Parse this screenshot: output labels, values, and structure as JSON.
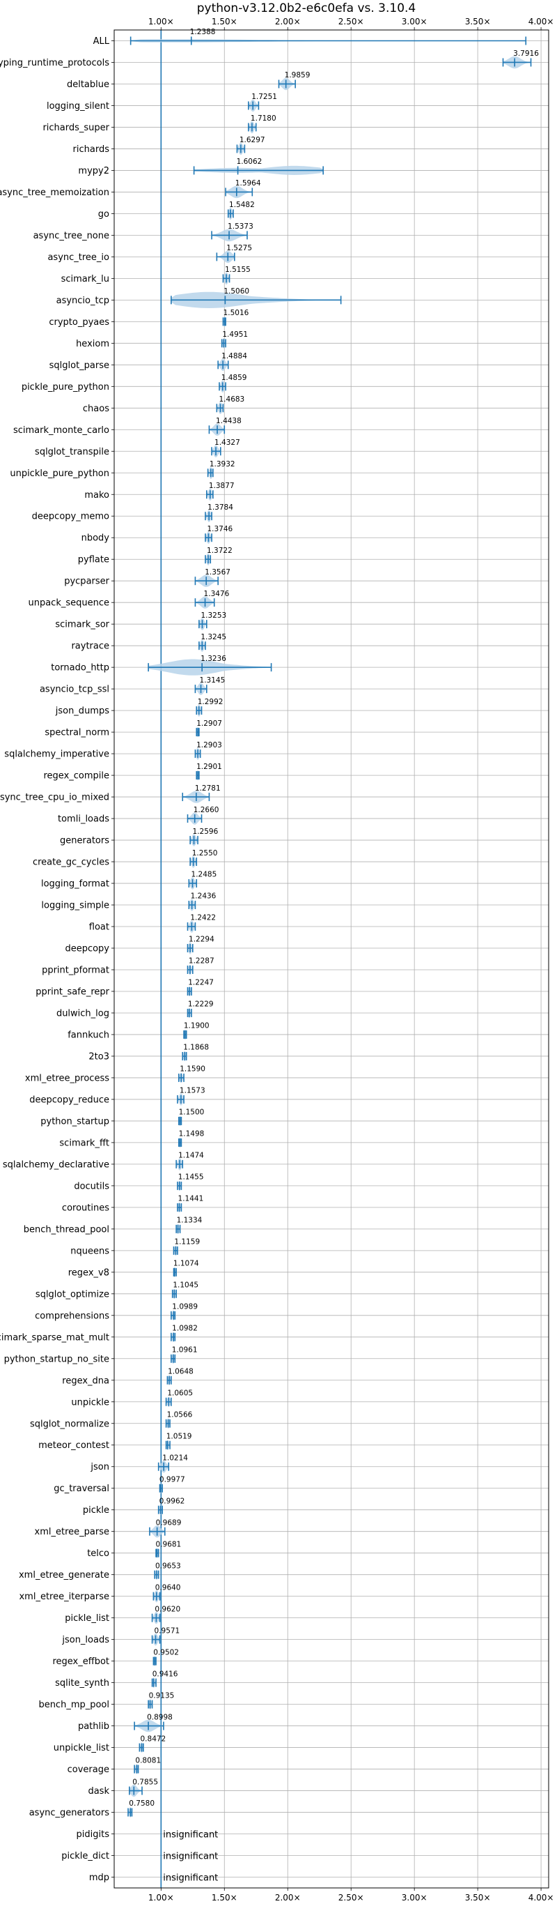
{
  "chart_data": {
    "type": "violin",
    "title": "python-v3.12.0b2-e6c0efa vs. 3.10.4",
    "orientation": "horizontal",
    "xlim": [
      0.63,
      4.06
    ],
    "x_ticks": [
      1.0,
      1.5,
      2.0,
      2.5,
      3.0,
      3.5,
      4.0
    ],
    "x_tick_labels": [
      "1.00×",
      "1.50×",
      "2.00×",
      "2.50×",
      "3.00×",
      "3.50×",
      "4.00×"
    ],
    "x_tick_position": "top-and-bottom",
    "reference_line": 1.0,
    "grid": true,
    "colors": {
      "line": "#1f77b4",
      "violin_fill": "#b7d3ea",
      "grid": "#b0b0b0",
      "axis": "#000000"
    },
    "benchmarks": [
      {
        "name": "ALL",
        "label": "1.2388",
        "median": 1.2388,
        "min": 0.76,
        "max": 3.88,
        "width": 0.16,
        "mode": 1.12
      },
      {
        "name": "typing_runtime_protocols",
        "label": "3.7916",
        "median": 3.7916,
        "min": 3.7,
        "max": 3.92,
        "width": 0.6
      },
      {
        "name": "deltablue",
        "label": "1.9859",
        "median": 1.9859,
        "min": 1.93,
        "max": 2.06,
        "width": 0.6
      },
      {
        "name": "logging_silent",
        "label": "1.7251",
        "median": 1.7251,
        "min": 1.69,
        "max": 1.77,
        "width": 0.6
      },
      {
        "name": "richards_super",
        "label": "1.7180",
        "median": 1.718,
        "min": 1.69,
        "max": 1.75,
        "width": 0.6
      },
      {
        "name": "richards",
        "label": "1.6297",
        "median": 1.6297,
        "min": 1.6,
        "max": 1.66,
        "width": 0.6
      },
      {
        "name": "mypy2",
        "label": "1.6062",
        "median": 1.6062,
        "min": 1.26,
        "max": 2.28,
        "width": 0.45,
        "mode": 2.05
      },
      {
        "name": "async_tree_memoization",
        "label": "1.5964",
        "median": 1.5964,
        "min": 1.51,
        "max": 1.72,
        "width": 0.6
      },
      {
        "name": "go",
        "label": "1.5482",
        "median": 1.5482,
        "min": 1.53,
        "max": 1.57,
        "width": 0.6
      },
      {
        "name": "async_tree_none",
        "label": "1.5373",
        "median": 1.5373,
        "min": 1.4,
        "max": 1.68,
        "width": 0.6
      },
      {
        "name": "async_tree_io",
        "label": "1.5275",
        "median": 1.5275,
        "min": 1.44,
        "max": 1.58,
        "width": 0.6
      },
      {
        "name": "scimark_lu",
        "label": "1.5155",
        "median": 1.5155,
        "min": 1.49,
        "max": 1.54,
        "width": 0.6
      },
      {
        "name": "asyncio_tcp",
        "label": "1.5060",
        "median": 1.506,
        "min": 1.08,
        "max": 2.42,
        "width": 0.8,
        "mode": 1.38
      },
      {
        "name": "crypto_pyaes",
        "label": "1.5016",
        "median": 1.5016,
        "min": 1.49,
        "max": 1.51,
        "width": 0.5
      },
      {
        "name": "hexiom",
        "label": "1.4951",
        "median": 1.4951,
        "min": 1.48,
        "max": 1.51,
        "width": 0.5
      },
      {
        "name": "sqlglot_parse",
        "label": "1.4884",
        "median": 1.4884,
        "min": 1.45,
        "max": 1.53,
        "width": 0.6
      },
      {
        "name": "pickle_pure_python",
        "label": "1.4859",
        "median": 1.4859,
        "min": 1.46,
        "max": 1.51,
        "width": 0.6
      },
      {
        "name": "chaos",
        "label": "1.4683",
        "median": 1.4683,
        "min": 1.44,
        "max": 1.49,
        "width": 0.6
      },
      {
        "name": "scimark_monte_carlo",
        "label": "1.4438",
        "median": 1.4438,
        "min": 1.38,
        "max": 1.5,
        "width": 0.6
      },
      {
        "name": "sqlglot_transpile",
        "label": "1.4327",
        "median": 1.4327,
        "min": 1.4,
        "max": 1.47,
        "width": 0.6
      },
      {
        "name": "unpickle_pure_python",
        "label": "1.3932",
        "median": 1.3932,
        "min": 1.37,
        "max": 1.41,
        "width": 0.6
      },
      {
        "name": "mako",
        "label": "1.3877",
        "median": 1.3877,
        "min": 1.36,
        "max": 1.41,
        "width": 0.6
      },
      {
        "name": "deepcopy_memo",
        "label": "1.3784",
        "median": 1.3784,
        "min": 1.35,
        "max": 1.4,
        "width": 0.6
      },
      {
        "name": "nbody",
        "label": "1.3746",
        "median": 1.3746,
        "min": 1.35,
        "max": 1.4,
        "width": 0.6
      },
      {
        "name": "pyflate",
        "label": "1.3722",
        "median": 1.3722,
        "min": 1.35,
        "max": 1.39,
        "width": 0.6
      },
      {
        "name": "pycparser",
        "label": "1.3567",
        "median": 1.3567,
        "min": 1.27,
        "max": 1.45,
        "width": 0.6
      },
      {
        "name": "unpack_sequence",
        "label": "1.3476",
        "median": 1.3476,
        "min": 1.27,
        "max": 1.42,
        "width": 0.6
      },
      {
        "name": "scimark_sor",
        "label": "1.3253",
        "median": 1.3253,
        "min": 1.3,
        "max": 1.36,
        "width": 0.6
      },
      {
        "name": "raytrace",
        "label": "1.3245",
        "median": 1.3245,
        "min": 1.3,
        "max": 1.35,
        "width": 0.6
      },
      {
        "name": "tornado_http",
        "label": "1.3236",
        "median": 1.3236,
        "min": 0.9,
        "max": 1.87,
        "width": 0.8,
        "mode": 1.25
      },
      {
        "name": "asyncio_tcp_ssl",
        "label": "1.3145",
        "median": 1.3145,
        "min": 1.27,
        "max": 1.36,
        "width": 0.6
      },
      {
        "name": "json_dumps",
        "label": "1.2992",
        "median": 1.2992,
        "min": 1.28,
        "max": 1.32,
        "width": 0.6
      },
      {
        "name": "spectral_norm",
        "label": "1.2907",
        "median": 1.2907,
        "min": 1.28,
        "max": 1.3,
        "width": 0.5
      },
      {
        "name": "sqlalchemy_imperative",
        "label": "1.2903",
        "median": 1.2903,
        "min": 1.27,
        "max": 1.31,
        "width": 0.6
      },
      {
        "name": "regex_compile",
        "label": "1.2901",
        "median": 1.2901,
        "min": 1.28,
        "max": 1.3,
        "width": 0.5
      },
      {
        "name": "async_tree_cpu_io_mixed",
        "label": "1.2781",
        "median": 1.2781,
        "min": 1.17,
        "max": 1.38,
        "width": 0.6
      },
      {
        "name": "tomli_loads",
        "label": "1.2660",
        "median": 1.266,
        "min": 1.21,
        "max": 1.32,
        "width": 0.6
      },
      {
        "name": "generators",
        "label": "1.2596",
        "median": 1.2596,
        "min": 1.23,
        "max": 1.29,
        "width": 0.6
      },
      {
        "name": "create_gc_cycles",
        "label": "1.2550",
        "median": 1.255,
        "min": 1.23,
        "max": 1.28,
        "width": 0.6
      },
      {
        "name": "logging_format",
        "label": "1.2485",
        "median": 1.2485,
        "min": 1.22,
        "max": 1.28,
        "width": 0.6
      },
      {
        "name": "logging_simple",
        "label": "1.2436",
        "median": 1.2436,
        "min": 1.22,
        "max": 1.27,
        "width": 0.6
      },
      {
        "name": "float",
        "label": "1.2422",
        "median": 1.2422,
        "min": 1.21,
        "max": 1.27,
        "width": 0.6
      },
      {
        "name": "deepcopy",
        "label": "1.2294",
        "median": 1.2294,
        "min": 1.21,
        "max": 1.25,
        "width": 0.6
      },
      {
        "name": "pprint_pformat",
        "label": "1.2287",
        "median": 1.2287,
        "min": 1.21,
        "max": 1.25,
        "width": 0.5
      },
      {
        "name": "pprint_safe_repr",
        "label": "1.2247",
        "median": 1.2247,
        "min": 1.21,
        "max": 1.24,
        "width": 0.5
      },
      {
        "name": "dulwich_log",
        "label": "1.2229",
        "median": 1.2229,
        "min": 1.21,
        "max": 1.24,
        "width": 0.5
      },
      {
        "name": "fannkuch",
        "label": "1.1900",
        "median": 1.19,
        "min": 1.18,
        "max": 1.2,
        "width": 0.5
      },
      {
        "name": "2to3",
        "label": "1.1868",
        "median": 1.1868,
        "min": 1.17,
        "max": 1.2,
        "width": 0.5
      },
      {
        "name": "xml_etree_process",
        "label": "1.1590",
        "median": 1.159,
        "min": 1.14,
        "max": 1.18,
        "width": 0.5
      },
      {
        "name": "deepcopy_reduce",
        "label": "1.1573",
        "median": 1.1573,
        "min": 1.13,
        "max": 1.18,
        "width": 0.6
      },
      {
        "name": "python_startup",
        "label": "1.1500",
        "median": 1.15,
        "min": 1.14,
        "max": 1.16,
        "width": 0.5
      },
      {
        "name": "scimark_fft",
        "label": "1.1498",
        "median": 1.1498,
        "min": 1.14,
        "max": 1.16,
        "width": 0.5
      },
      {
        "name": "sqlalchemy_declarative",
        "label": "1.1474",
        "median": 1.1474,
        "min": 1.12,
        "max": 1.17,
        "width": 0.6
      },
      {
        "name": "docutils",
        "label": "1.1455",
        "median": 1.1455,
        "min": 1.13,
        "max": 1.16,
        "width": 0.5
      },
      {
        "name": "coroutines",
        "label": "1.1441",
        "median": 1.1441,
        "min": 1.13,
        "max": 1.16,
        "width": 0.5
      },
      {
        "name": "bench_thread_pool",
        "label": "1.1334",
        "median": 1.1334,
        "min": 1.12,
        "max": 1.15,
        "width": 0.5
      },
      {
        "name": "nqueens",
        "label": "1.1159",
        "median": 1.1159,
        "min": 1.1,
        "max": 1.13,
        "width": 0.5
      },
      {
        "name": "regex_v8",
        "label": "1.1074",
        "median": 1.1074,
        "min": 1.1,
        "max": 1.12,
        "width": 0.5
      },
      {
        "name": "sqlglot_optimize",
        "label": "1.1045",
        "median": 1.1045,
        "min": 1.09,
        "max": 1.12,
        "width": 0.5
      },
      {
        "name": "comprehensions",
        "label": "1.0989",
        "median": 1.0989,
        "min": 1.08,
        "max": 1.11,
        "width": 0.5
      },
      {
        "name": "scimark_sparse_mat_mult",
        "label": "1.0982",
        "median": 1.0982,
        "min": 1.08,
        "max": 1.11,
        "width": 0.5
      },
      {
        "name": "python_startup_no_site",
        "label": "1.0961",
        "median": 1.0961,
        "min": 1.08,
        "max": 1.11,
        "width": 0.5
      },
      {
        "name": "regex_dna",
        "label": "1.0648",
        "median": 1.0648,
        "min": 1.05,
        "max": 1.08,
        "width": 0.5
      },
      {
        "name": "unpickle",
        "label": "1.0605",
        "median": 1.0605,
        "min": 1.04,
        "max": 1.08,
        "width": 0.5
      },
      {
        "name": "sqlglot_normalize",
        "label": "1.0566",
        "median": 1.0566,
        "min": 1.04,
        "max": 1.07,
        "width": 0.5
      },
      {
        "name": "meteor_contest",
        "label": "1.0519",
        "median": 1.0519,
        "min": 1.04,
        "max": 1.07,
        "width": 0.5
      },
      {
        "name": "json",
        "label": "1.0214",
        "median": 1.0214,
        "min": 0.98,
        "max": 1.06,
        "width": 0.6
      },
      {
        "name": "gc_traversal",
        "label": "0.9977",
        "median": 0.9977,
        "min": 0.99,
        "max": 1.01,
        "width": 0.5
      },
      {
        "name": "pickle",
        "label": "0.9962",
        "median": 0.9962,
        "min": 0.98,
        "max": 1.01,
        "width": 0.5
      },
      {
        "name": "xml_etree_parse",
        "label": "0.9689",
        "median": 0.9689,
        "min": 0.91,
        "max": 1.03,
        "width": 0.6
      },
      {
        "name": "telco",
        "label": "0.9681",
        "median": 0.9681,
        "min": 0.96,
        "max": 0.98,
        "width": 0.5
      },
      {
        "name": "xml_etree_generate",
        "label": "0.9653",
        "median": 0.9653,
        "min": 0.95,
        "max": 0.98,
        "width": 0.5
      },
      {
        "name": "xml_etree_iterparse",
        "label": "0.9640",
        "median": 0.964,
        "min": 0.94,
        "max": 0.99,
        "width": 0.6
      },
      {
        "name": "pickle_list",
        "label": "0.9620",
        "median": 0.962,
        "min": 0.93,
        "max": 0.99,
        "width": 0.6
      },
      {
        "name": "json_loads",
        "label": "0.9571",
        "median": 0.9571,
        "min": 0.93,
        "max": 0.99,
        "width": 0.6
      },
      {
        "name": "regex_effbot",
        "label": "0.9502",
        "median": 0.9502,
        "min": 0.94,
        "max": 0.96,
        "width": 0.5
      },
      {
        "name": "sqlite_synth",
        "label": "0.9416",
        "median": 0.9416,
        "min": 0.93,
        "max": 0.96,
        "width": 0.5
      },
      {
        "name": "bench_mp_pool",
        "label": "0.9135",
        "median": 0.9135,
        "min": 0.9,
        "max": 0.93,
        "width": 0.5
      },
      {
        "name": "pathlib",
        "label": "0.8998",
        "median": 0.8998,
        "min": 0.79,
        "max": 1.02,
        "width": 0.6
      },
      {
        "name": "unpickle_list",
        "label": "0.8472",
        "median": 0.8472,
        "min": 0.83,
        "max": 0.86,
        "width": 0.5
      },
      {
        "name": "coverage",
        "label": "0.8081",
        "median": 0.8081,
        "min": 0.79,
        "max": 0.82,
        "width": 0.5
      },
      {
        "name": "dask",
        "label": "0.7855",
        "median": 0.7855,
        "min": 0.75,
        "max": 0.85,
        "width": 0.6
      },
      {
        "name": "async_generators",
        "label": "0.7580",
        "median": 0.758,
        "min": 0.74,
        "max": 0.77,
        "width": 0.5
      },
      {
        "name": "pidigits",
        "label": "insignificant",
        "insignificant": true
      },
      {
        "name": "pickle_dict",
        "label": "insignificant",
        "insignificant": true
      },
      {
        "name": "mdp",
        "label": "insignificant",
        "insignificant": true
      }
    ]
  }
}
